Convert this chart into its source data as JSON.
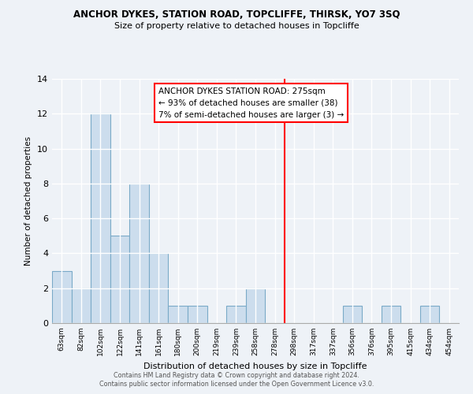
{
  "title": "ANCHOR DYKES, STATION ROAD, TOPCLIFFE, THIRSK, YO7 3SQ",
  "subtitle": "Size of property relative to detached houses in Topcliffe",
  "xlabel": "Distribution of detached houses by size in Topcliffe",
  "ylabel": "Number of detached properties",
  "bar_labels": [
    "63sqm",
    "82sqm",
    "102sqm",
    "122sqm",
    "141sqm",
    "161sqm",
    "180sqm",
    "200sqm",
    "219sqm",
    "239sqm",
    "258sqm",
    "278sqm",
    "298sqm",
    "317sqm",
    "337sqm",
    "356sqm",
    "376sqm",
    "395sqm",
    "415sqm",
    "434sqm",
    "454sqm"
  ],
  "bar_values": [
    3,
    2,
    12,
    5,
    8,
    4,
    1,
    1,
    0,
    1,
    2,
    0,
    0,
    0,
    0,
    1,
    0,
    1,
    0,
    1,
    0
  ],
  "bar_color": "#ccdded",
  "bar_edge_color": "#7aaac8",
  "vline_index": 11,
  "vline_color": "red",
  "annotation_title": "ANCHOR DYKES STATION ROAD: 275sqm",
  "annotation_line1": "← 93% of detached houses are smaller (38)",
  "annotation_line2": "7% of semi-detached houses are larger (3) →",
  "annotation_box_color": "white",
  "annotation_box_edge_color": "red",
  "ylim": [
    0,
    14
  ],
  "yticks": [
    0,
    2,
    4,
    6,
    8,
    10,
    12,
    14
  ],
  "footer1": "Contains HM Land Registry data © Crown copyright and database right 2024.",
  "footer2": "Contains public sector information licensed under the Open Government Licence v3.0.",
  "background_color": "#eef2f7"
}
